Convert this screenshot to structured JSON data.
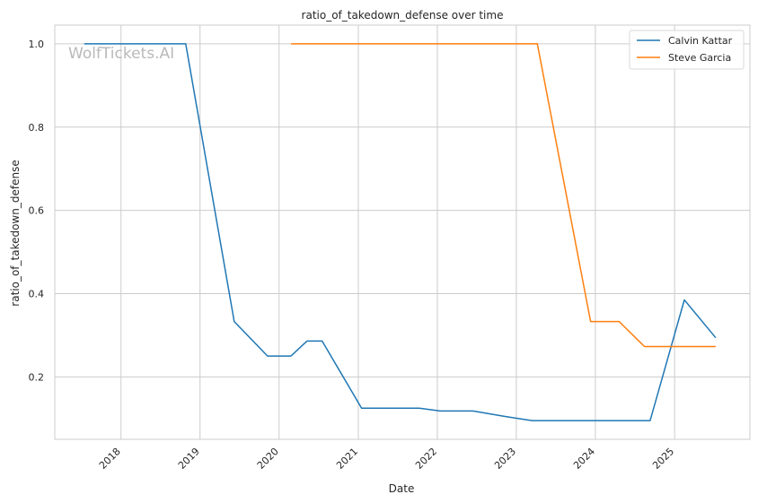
{
  "chart_data": {
    "type": "line",
    "title": "ratio_of_takedown_defense over time",
    "xlabel": "Date",
    "ylabel": "ratio_of_takedown_defense",
    "watermark": "WolfTickets.AI",
    "x_ticks": [
      "2018",
      "2019",
      "2020",
      "2021",
      "2022",
      "2023",
      "2024",
      "2025"
    ],
    "y_ticks": [
      "0.2",
      "0.4",
      "0.6",
      "0.8",
      "1.0"
    ],
    "xlim": [
      "2017-03-01",
      "2025-12-15"
    ],
    "ylim": [
      0.05,
      1.045
    ],
    "grid": true,
    "legend_position": "top-right",
    "series": [
      {
        "name": "Calvin Kattar",
        "color": "#1f77b4",
        "points": [
          [
            "2017-07-15",
            1.0
          ],
          [
            "2018-10-27",
            1.0
          ],
          [
            "2019-06-08",
            0.333
          ],
          [
            "2019-11-09",
            0.25
          ],
          [
            "2020-02-25",
            0.25
          ],
          [
            "2020-05-09",
            0.286
          ],
          [
            "2020-07-18",
            0.286
          ],
          [
            "2021-01-16",
            0.125
          ],
          [
            "2021-10-10",
            0.125
          ],
          [
            "2022-01-15",
            0.118
          ],
          [
            "2022-06-15",
            0.118
          ],
          [
            "2022-11-10",
            0.105
          ],
          [
            "2023-03-15",
            0.095
          ],
          [
            "2024-09-10",
            0.095
          ],
          [
            "2025-02-15",
            0.385
          ],
          [
            "2025-07-10",
            0.294
          ]
        ]
      },
      {
        "name": "Steve Garcia",
        "color": "#ff7f0e",
        "points": [
          [
            "2020-02-25",
            1.0
          ],
          [
            "2023-04-08",
            1.0
          ],
          [
            "2023-12-10",
            0.333
          ],
          [
            "2024-04-20",
            0.333
          ],
          [
            "2024-08-15",
            0.273
          ],
          [
            "2025-07-10",
            0.273
          ]
        ]
      }
    ]
  }
}
